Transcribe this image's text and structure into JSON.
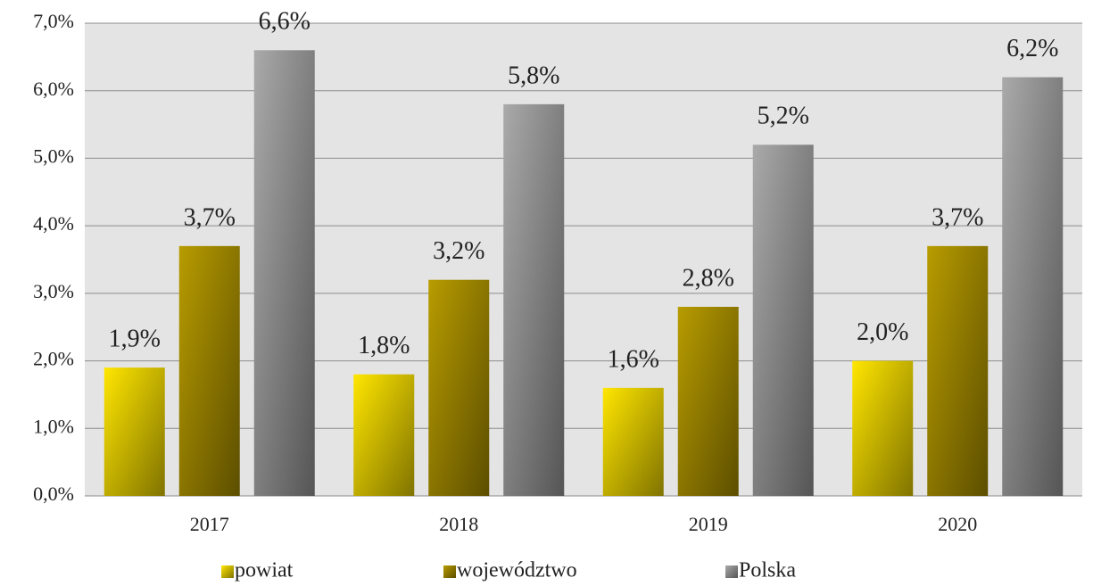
{
  "chart_data": {
    "type": "bar",
    "categories": [
      "2017",
      "2018",
      "2019",
      "2020"
    ],
    "series": [
      {
        "name": "powiat",
        "color": "#ffe600",
        "values": [
          1.9,
          1.8,
          1.6,
          2.0
        ],
        "value_labels": [
          "1,9%",
          "1,8%",
          "1,6%",
          "2,0%"
        ]
      },
      {
        "name": "województwo",
        "color": "#b89c00",
        "values": [
          3.7,
          3.2,
          2.8,
          3.7
        ],
        "value_labels": [
          "3,7%",
          "3,2%",
          "2,8%",
          "3,7%"
        ]
      },
      {
        "name": "Polska",
        "color": "#aaaaaa",
        "values": [
          6.6,
          5.8,
          5.2,
          6.2
        ],
        "value_labels": [
          "6,6%",
          "5,8%",
          "5,2%",
          "6,2%"
        ]
      }
    ],
    "ylim": [
      0,
      7
    ],
    "yticks": [
      {
        "value": 0,
        "label": "0,0%"
      },
      {
        "value": 1,
        "label": "1,0%"
      },
      {
        "value": 2,
        "label": "2,0%"
      },
      {
        "value": 3,
        "label": "3,0%"
      },
      {
        "value": 4,
        "label": "4,0%"
      },
      {
        "value": 5,
        "label": "5,0%"
      },
      {
        "value": 6,
        "label": "6,0%"
      },
      {
        "value": 7,
        "label": "7,0%"
      }
    ],
    "grid": true,
    "legend": "bottom"
  }
}
